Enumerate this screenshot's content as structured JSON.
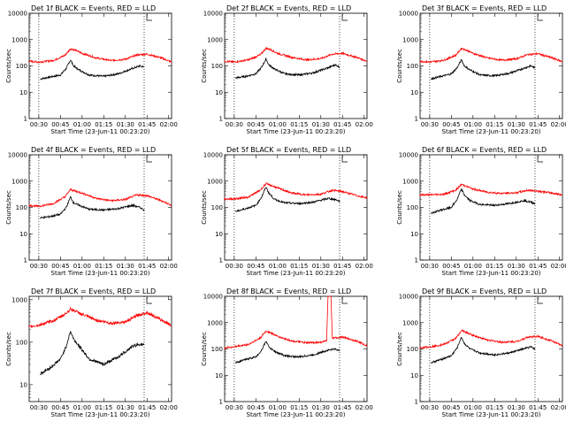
{
  "figure": {
    "title_template": "Det {n}f BLACK = Events, RED = LLD",
    "xlabel": "Start Time (23-Jun-11 00:23:20)",
    "ylabel": "Counts/sec",
    "colors": {
      "events": "#000000",
      "lld": "#ff0000"
    }
  },
  "chart_data": [
    {
      "type": "line",
      "detector": "1",
      "title": "Det 1f BLACK = Events, RED = LLD",
      "xlabel": "Start Time (23-Jun-11 00:23:20)",
      "ylabel": "Counts/sec",
      "x_ticks": [
        "00:30",
        "00:45",
        "01:00",
        "01:15",
        "01:30",
        "01:45",
        "02:00"
      ],
      "y_ticks": [
        "1",
        "10",
        "100",
        "1000",
        "10000"
      ],
      "ylim": [
        1,
        10000
      ],
      "yscale": "log",
      "vlines": [
        "00:30",
        "01:43"
      ],
      "series": [
        {
          "name": "Events",
          "color": "#000000",
          "x": [
            "00:31",
            "00:38",
            "00:45",
            "00:49",
            "00:52",
            "00:54",
            "00:58",
            "01:05",
            "01:15",
            "01:25",
            "01:35",
            "01:40",
            "01:43"
          ],
          "y": [
            32,
            38,
            45,
            80,
            170,
            100,
            70,
            45,
            40,
            50,
            80,
            100,
            90
          ]
        },
        {
          "name": "LLD",
          "color": "#ff0000",
          "x": [
            "00:23",
            "00:30",
            "00:40",
            "00:48",
            "00:52",
            "00:55",
            "01:00",
            "01:10",
            "01:20",
            "01:30",
            "01:38",
            "01:45",
            "01:55",
            "02:02"
          ],
          "y": [
            150,
            140,
            160,
            250,
            450,
            400,
            300,
            200,
            160,
            180,
            260,
            280,
            200,
            140
          ]
        }
      ]
    },
    {
      "type": "line",
      "detector": "2",
      "title": "Det 2f BLACK = Events, RED = LLD",
      "xlabel": "Start Time (23-Jun-11 00:23:20)",
      "ylabel": "Counts/sec",
      "x_ticks": [
        "00:30",
        "00:45",
        "01:00",
        "01:15",
        "01:30",
        "01:45",
        "02:00"
      ],
      "y_ticks": [
        "1",
        "10",
        "100",
        "1000",
        "10000"
      ],
      "ylim": [
        1,
        10000
      ],
      "yscale": "log",
      "vlines": [
        "00:30",
        "01:43"
      ],
      "series": [
        {
          "name": "Events",
          "color": "#000000",
          "x": [
            "00:31",
            "00:38",
            "00:45",
            "00:49",
            "00:52",
            "00:54",
            "00:58",
            "01:05",
            "01:15",
            "01:25",
            "01:35",
            "01:40",
            "01:43"
          ],
          "y": [
            35,
            40,
            50,
            90,
            180,
            110,
            75,
            50,
            45,
            55,
            85,
            110,
            90
          ]
        },
        {
          "name": "LLD",
          "color": "#ff0000",
          "x": [
            "00:23",
            "00:30",
            "00:40",
            "00:48",
            "00:52",
            "00:55",
            "01:00",
            "01:10",
            "01:20",
            "01:30",
            "01:38",
            "01:45",
            "01:55",
            "02:02"
          ],
          "y": [
            150,
            140,
            170,
            260,
            470,
            420,
            300,
            210,
            170,
            190,
            280,
            300,
            210,
            150
          ]
        }
      ]
    },
    {
      "type": "line",
      "detector": "3",
      "title": "Det 3f BLACK = Events, RED = LLD",
      "xlabel": "Start Time (23-Jun-11 00:23:20)",
      "ylabel": "Counts/sec",
      "x_ticks": [
        "00:30",
        "00:45",
        "01:00",
        "01:15",
        "01:30",
        "01:45",
        "02:00"
      ],
      "y_ticks": [
        "1",
        "10",
        "100",
        "1000",
        "10000"
      ],
      "ylim": [
        1,
        10000
      ],
      "yscale": "log",
      "vlines": [
        "00:30",
        "01:43"
      ],
      "series": [
        {
          "name": "Events",
          "color": "#000000",
          "x": [
            "00:31",
            "00:38",
            "00:45",
            "00:49",
            "00:52",
            "00:54",
            "00:58",
            "01:05",
            "01:15",
            "01:25",
            "01:35",
            "01:40",
            "01:43"
          ],
          "y": [
            32,
            40,
            50,
            85,
            170,
            100,
            70,
            45,
            42,
            52,
            80,
            100,
            85
          ]
        },
        {
          "name": "LLD",
          "color": "#ff0000",
          "x": [
            "00:23",
            "00:30",
            "00:40",
            "00:48",
            "00:52",
            "00:55",
            "01:00",
            "01:10",
            "01:20",
            "01:30",
            "01:38",
            "01:45",
            "01:55",
            "02:02"
          ],
          "y": [
            150,
            140,
            165,
            255,
            460,
            410,
            300,
            200,
            165,
            185,
            270,
            290,
            200,
            145
          ]
        }
      ]
    },
    {
      "type": "line",
      "detector": "4",
      "title": "Det 4f BLACK = Events, RED = LLD",
      "xlabel": "Start Time (23-Jun-11 00:23:20)",
      "ylabel": "Counts/sec",
      "x_ticks": [
        "00:30",
        "00:45",
        "01:00",
        "01:15",
        "01:30",
        "01:45",
        "02:00"
      ],
      "y_ticks": [
        "1",
        "10",
        "100",
        "1000",
        "10000"
      ],
      "ylim": [
        1,
        10000
      ],
      "yscale": "log",
      "vlines": [
        "00:30",
        "01:43"
      ],
      "series": [
        {
          "name": "Events",
          "color": "#000000",
          "x": [
            "00:31",
            "00:38",
            "00:45",
            "00:49",
            "00:52",
            "00:54",
            "00:58",
            "01:05",
            "01:15",
            "01:25",
            "01:35",
            "01:40",
            "01:43"
          ],
          "y": [
            40,
            45,
            55,
            100,
            250,
            150,
            120,
            85,
            80,
            90,
            120,
            100,
            80
          ]
        },
        {
          "name": "LLD",
          "color": "#ff0000",
          "x": [
            "00:23",
            "00:30",
            "00:40",
            "00:48",
            "00:52",
            "00:55",
            "01:00",
            "01:10",
            "01:20",
            "01:30",
            "01:38",
            "01:45",
            "01:55",
            "02:02"
          ],
          "y": [
            120,
            110,
            140,
            250,
            480,
            420,
            350,
            220,
            180,
            200,
            300,
            280,
            180,
            120
          ]
        }
      ]
    },
    {
      "type": "line",
      "detector": "5",
      "title": "Det 5f BLACK = Events, RED = LLD",
      "xlabel": "Start Time (23-Jun-11 00:23:20)",
      "ylabel": "Counts/sec",
      "x_ticks": [
        "00:30",
        "00:45",
        "01:00",
        "01:15",
        "01:30",
        "01:45",
        "02:00"
      ],
      "y_ticks": [
        "1",
        "10",
        "100",
        "1000",
        "10000"
      ],
      "ylim": [
        1,
        10000
      ],
      "yscale": "log",
      "vlines": [
        "00:30",
        "01:43"
      ],
      "series": [
        {
          "name": "Events",
          "color": "#000000",
          "x": [
            "00:31",
            "00:38",
            "00:45",
            "00:49",
            "00:52",
            "00:54",
            "00:58",
            "01:05",
            "01:15",
            "01:25",
            "01:35",
            "01:40",
            "01:43"
          ],
          "y": [
            70,
            90,
            120,
            250,
            600,
            350,
            200,
            150,
            140,
            160,
            220,
            200,
            170
          ]
        },
        {
          "name": "LLD",
          "color": "#ff0000",
          "x": [
            "00:23",
            "00:30",
            "00:40",
            "00:48",
            "00:52",
            "00:55",
            "01:00",
            "01:10",
            "01:20",
            "01:30",
            "01:38",
            "01:45",
            "01:55",
            "02:02"
          ],
          "y": [
            210,
            210,
            250,
            450,
            800,
            700,
            550,
            350,
            300,
            320,
            450,
            400,
            280,
            230
          ]
        }
      ]
    },
    {
      "type": "line",
      "detector": "6",
      "title": "Det 6f BLACK = Events, RED = LLD",
      "xlabel": "Start Time (23-Jun-11 00:23:20)",
      "ylabel": "Counts/sec",
      "x_ticks": [
        "00:30",
        "00:45",
        "01:00",
        "01:15",
        "01:30",
        "01:45",
        "02:00"
      ],
      "y_ticks": [
        "1",
        "10",
        "100",
        "1000",
        "10000"
      ],
      "ylim": [
        1,
        10000
      ],
      "yscale": "log",
      "vlines": [
        "00:30",
        "01:43"
      ],
      "series": [
        {
          "name": "Events",
          "color": "#000000",
          "x": [
            "00:31",
            "00:38",
            "00:45",
            "00:49",
            "00:52",
            "00:54",
            "00:58",
            "01:05",
            "01:15",
            "01:25",
            "01:35",
            "01:40",
            "01:43"
          ],
          "y": [
            60,
            80,
            100,
            200,
            500,
            300,
            180,
            130,
            120,
            140,
            180,
            160,
            140
          ]
        },
        {
          "name": "LLD",
          "color": "#ff0000",
          "x": [
            "00:23",
            "00:30",
            "00:40",
            "00:48",
            "00:52",
            "00:55",
            "01:00",
            "01:10",
            "01:20",
            "01:30",
            "01:38",
            "01:45",
            "01:55",
            "02:02"
          ],
          "y": [
            300,
            300,
            320,
            450,
            750,
            650,
            500,
            380,
            340,
            360,
            450,
            420,
            350,
            300
          ]
        }
      ]
    },
    {
      "type": "line",
      "detector": "7",
      "title": "Det 7f BLACK = Events, RED = LLD",
      "xlabel": "Start Time (23-Jun-11 00:23:20)",
      "ylabel": "Counts/sec",
      "x_ticks": [
        "00:30",
        "00:45",
        "01:00",
        "01:15",
        "01:30",
        "01:45",
        "02:00"
      ],
      "y_ticks": [
        "10",
        "100",
        "1000"
      ],
      "ylim": [
        4,
        1200
      ],
      "yscale": "log",
      "vlines": [
        "01:43"
      ],
      "series": [
        {
          "name": "Events",
          "color": "#000000",
          "x": [
            "00:31",
            "00:38",
            "00:45",
            "00:49",
            "00:52",
            "00:54",
            "00:58",
            "01:05",
            "01:15",
            "01:25",
            "01:35",
            "01:40",
            "01:43"
          ],
          "y": [
            18,
            25,
            40,
            80,
            180,
            120,
            80,
            40,
            30,
            45,
            80,
            90,
            85
          ]
        },
        {
          "name": "LLD",
          "color": "#ff0000",
          "x": [
            "00:23",
            "00:30",
            "00:40",
            "00:48",
            "00:52",
            "00:55",
            "01:00",
            "01:10",
            "01:20",
            "01:30",
            "01:38",
            "01:45",
            "01:55",
            "02:02"
          ],
          "y": [
            230,
            250,
            320,
            450,
            600,
            550,
            450,
            330,
            280,
            300,
            420,
            500,
            330,
            250
          ]
        }
      ]
    },
    {
      "type": "line",
      "detector": "8",
      "title": "Det 8f BLACK = Events, RED = LLD",
      "xlabel": "Start Time (23-Jun-11 00:23:20)",
      "ylabel": "Counts/sec",
      "x_ticks": [
        "00:30",
        "00:45",
        "01:00",
        "01:15",
        "01:30",
        "01:45",
        "02:00"
      ],
      "y_ticks": [
        "1",
        "10",
        "100",
        "1000",
        "10000"
      ],
      "ylim": [
        1,
        10000
      ],
      "yscale": "log",
      "vlines": [
        "00:30",
        "01:43"
      ],
      "series": [
        {
          "name": "Events",
          "color": "#000000",
          "x": [
            "00:31",
            "00:38",
            "00:45",
            "00:49",
            "00:52",
            "00:54",
            "00:58",
            "01:05",
            "01:15",
            "01:25",
            "01:35",
            "01:40",
            "01:43"
          ],
          "y": [
            30,
            40,
            50,
            90,
            200,
            120,
            80,
            55,
            50,
            60,
            90,
            100,
            85
          ]
        },
        {
          "name": "LLD",
          "color": "#ff0000",
          "x": [
            "00:23",
            "00:30",
            "00:40",
            "00:48",
            "00:52",
            "00:55",
            "01:00",
            "01:10",
            "01:20",
            "01:30",
            "01:34",
            "01:35",
            "01:37",
            "01:38",
            "01:45",
            "01:55",
            "02:02"
          ],
          "y": [
            110,
            120,
            150,
            260,
            480,
            420,
            300,
            200,
            170,
            180,
            200,
            10000,
            10000,
            260,
            280,
            200,
            130
          ]
        }
      ]
    },
    {
      "type": "line",
      "detector": "9",
      "title": "Det 9f BLACK = Events, RED = LLD",
      "xlabel": "Start Time (23-Jun-11 00:23:20)",
      "ylabel": "Counts/sec",
      "x_ticks": [
        "00:30",
        "00:45",
        "01:00",
        "01:15",
        "01:30",
        "01:45",
        "02:00"
      ],
      "y_ticks": [
        "1",
        "10",
        "100",
        "1000",
        "10000"
      ],
      "ylim": [
        1,
        10000
      ],
      "yscale": "log",
      "vlines": [
        "00:30",
        "01:43"
      ],
      "series": [
        {
          "name": "Events",
          "color": "#000000",
          "x": [
            "00:31",
            "00:38",
            "00:45",
            "00:49",
            "00:52",
            "00:54",
            "00:58",
            "01:05",
            "01:15",
            "01:25",
            "01:35",
            "01:40",
            "01:43"
          ],
          "y": [
            30,
            40,
            55,
            110,
            280,
            160,
            100,
            70,
            60,
            70,
            100,
            120,
            100
          ]
        },
        {
          "name": "LLD",
          "color": "#ff0000",
          "x": [
            "00:23",
            "00:30",
            "00:40",
            "00:48",
            "00:52",
            "00:55",
            "01:00",
            "01:10",
            "01:20",
            "01:30",
            "01:38",
            "01:45",
            "01:55",
            "02:02"
          ],
          "y": [
            110,
            120,
            150,
            250,
            500,
            430,
            330,
            220,
            180,
            190,
            280,
            300,
            200,
            130
          ]
        }
      ]
    }
  ]
}
